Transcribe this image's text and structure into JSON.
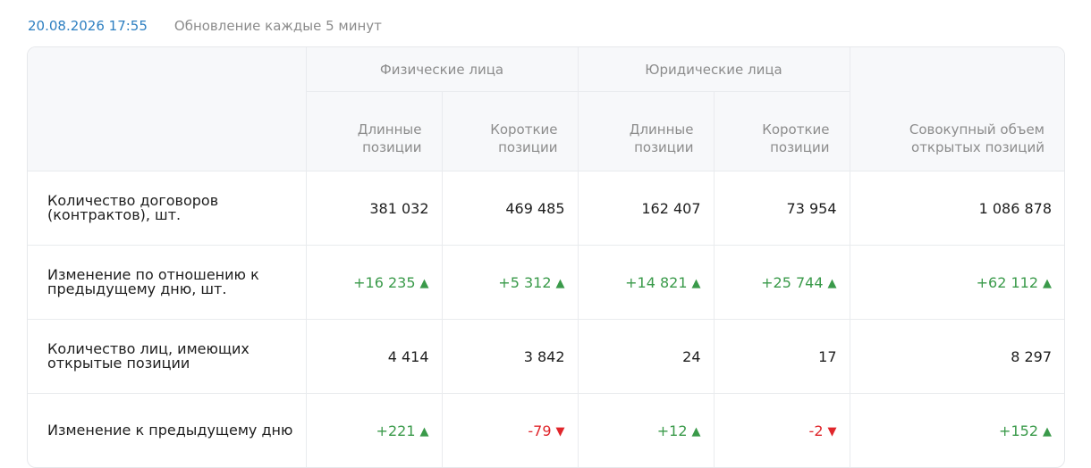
{
  "header": {
    "date": "20.08.2026 17:55",
    "update_interval": "Обновление каждые 5 минут"
  },
  "table": {
    "groups": [
      "Физические лица",
      "Юридические лица"
    ],
    "subcolumns": [
      "Длинные позиции",
      "Короткие позиции",
      "Длинные позиции",
      "Короткие позиции"
    ],
    "total_column": "Совокупный объем открытых позиций",
    "rows": [
      {
        "label": "Количество договоров (контрактов), шт.",
        "cells": [
          {
            "value": "381 032",
            "trend": "none"
          },
          {
            "value": "469 485",
            "trend": "none"
          },
          {
            "value": "162 407",
            "trend": "none"
          },
          {
            "value": "73 954",
            "trend": "none"
          },
          {
            "value": "1 086 878",
            "trend": "none"
          }
        ]
      },
      {
        "label": "Изменение по отношению к предыдущему дню, шт.",
        "cells": [
          {
            "value": "+16 235",
            "trend": "up"
          },
          {
            "value": "+5 312",
            "trend": "up"
          },
          {
            "value": "+14 821",
            "trend": "up"
          },
          {
            "value": "+25 744",
            "trend": "up"
          },
          {
            "value": "+62 112",
            "trend": "up"
          }
        ]
      },
      {
        "label": "Количество лиц, имеющих открытые позиции",
        "cells": [
          {
            "value": "4 414",
            "trend": "none"
          },
          {
            "value": "3 842",
            "trend": "none"
          },
          {
            "value": "24",
            "trend": "none"
          },
          {
            "value": "17",
            "trend": "none"
          },
          {
            "value": "8 297",
            "trend": "none"
          }
        ]
      },
      {
        "label": "Изменение к предыдущему дню",
        "cells": [
          {
            "value": "+221",
            "trend": "up"
          },
          {
            "value": "-79",
            "trend": "down"
          },
          {
            "value": "+12",
            "trend": "up"
          },
          {
            "value": "-2",
            "trend": "down"
          },
          {
            "value": "+152",
            "trend": "up"
          }
        ]
      }
    ]
  },
  "colors": {
    "date": "#2d7fc1",
    "up": "#3a9a4a",
    "down": "#e0262b",
    "header_bg": "#f7f8fa"
  },
  "icons": {
    "up": "triangle-up-icon",
    "down": "triangle-down-icon"
  }
}
